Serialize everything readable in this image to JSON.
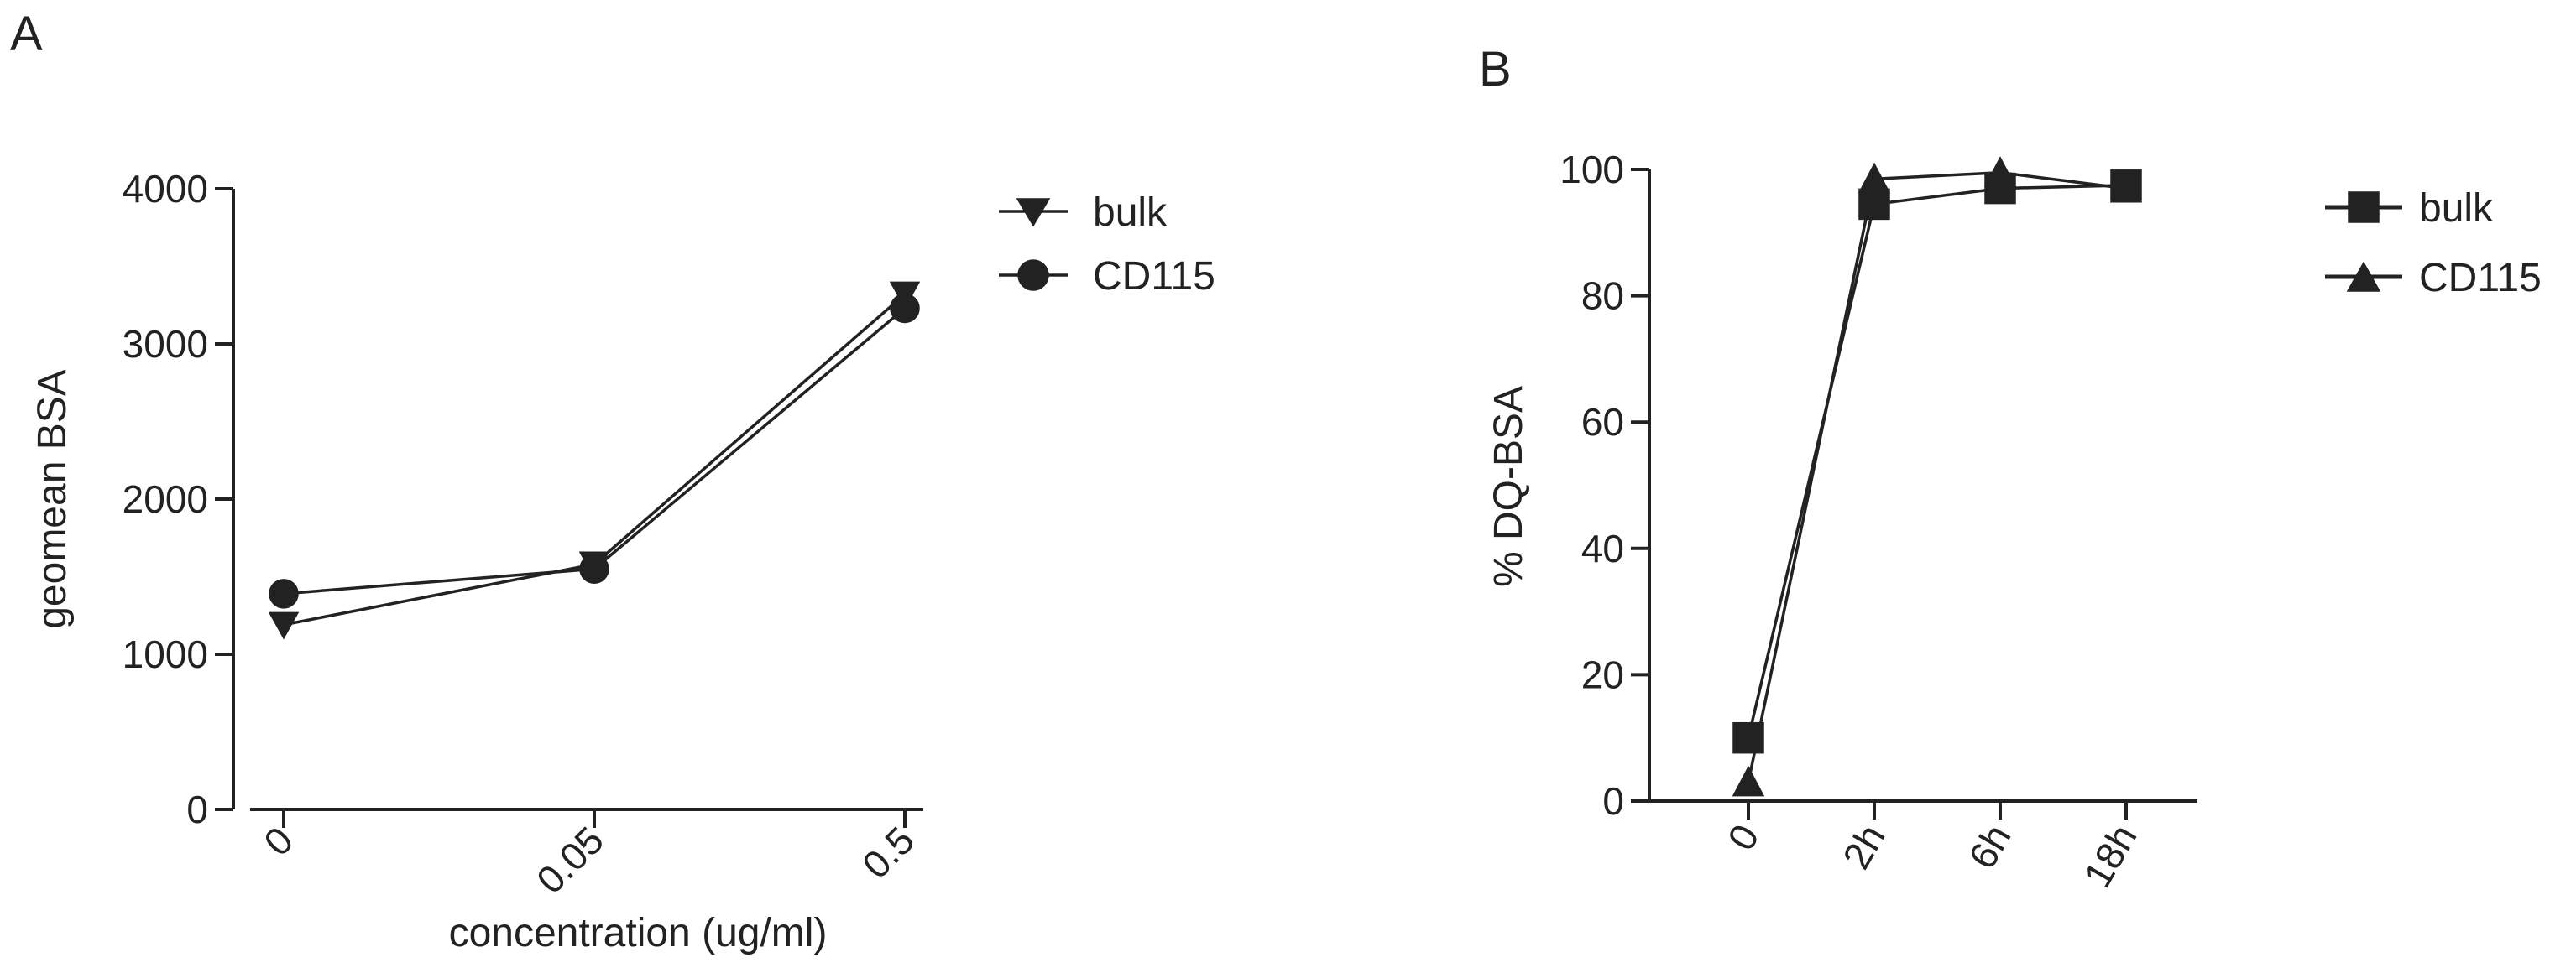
{
  "chart_data": [
    {
      "panel_label": "A",
      "type": "line",
      "categories": [
        "0",
        "0.05",
        "0.5"
      ],
      "xlabel": "concentration (ug/ml)",
      "ylabel": "geomean BSA",
      "ylim": [
        0,
        4000
      ],
      "yticks": [
        "0",
        "1000",
        "2000",
        "3000",
        "4000"
      ],
      "series": [
        {
          "name": "bulk",
          "marker": "triangle-down",
          "values": [
            1190,
            1580,
            3320
          ]
        },
        {
          "name": "CD115",
          "marker": "circle",
          "values": [
            1390,
            1550,
            3230
          ]
        }
      ],
      "legend_position": "right",
      "x_tick_rotation": 45
    },
    {
      "panel_label": "B",
      "type": "line",
      "categories": [
        "0",
        "2h",
        "6h",
        "18h"
      ],
      "xlabel": "",
      "ylabel": "% DQ-BSA",
      "ylim": [
        0,
        100
      ],
      "yticks": [
        "0",
        "20",
        "40",
        "60",
        "80",
        "100"
      ],
      "series": [
        {
          "name": "bulk",
          "marker": "square",
          "values": [
            10,
            94.5,
            97,
            97.5
          ]
        },
        {
          "name": "CD115",
          "marker": "triangle-up",
          "values": [
            3,
            98.5,
            99.5,
            97
          ]
        }
      ],
      "legend_position": "right",
      "x_tick_rotation": 60
    }
  ]
}
